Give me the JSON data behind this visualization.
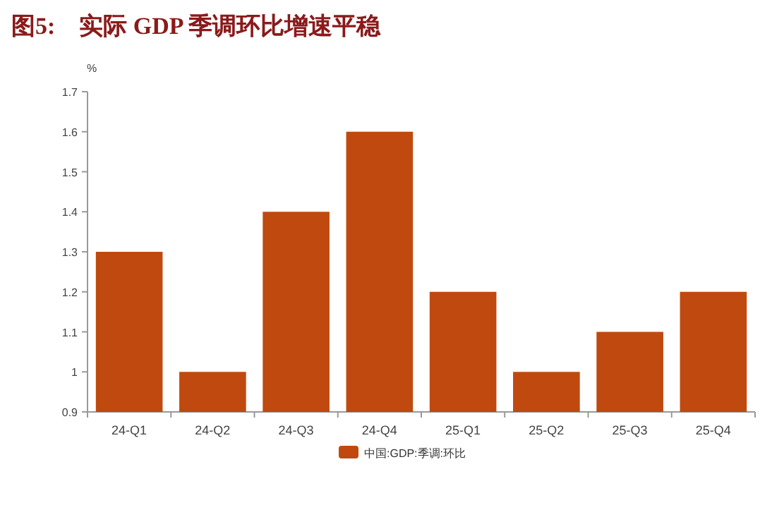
{
  "chart_data": {
    "type": "bar",
    "title": "图5:    实际 GDP 季调环比增速平稳",
    "ylabel": "%",
    "categories": [
      "24-Q1",
      "24-Q2",
      "24-Q3",
      "24-Q4",
      "25-Q1",
      "25-Q2",
      "25-Q3",
      "25-Q4"
    ],
    "series": [
      {
        "name": "中国:GDP:季调:环比",
        "color": "#c0490f",
        "values": [
          1.3,
          1.0,
          1.4,
          1.6,
          1.2,
          1.0,
          1.1,
          1.2
        ]
      }
    ],
    "ylim": [
      0.9,
      1.7
    ],
    "yticks": [
      0.9,
      1,
      1.1,
      1.2,
      1.3,
      1.4,
      1.5,
      1.6,
      1.7
    ],
    "legend": "bottom"
  }
}
